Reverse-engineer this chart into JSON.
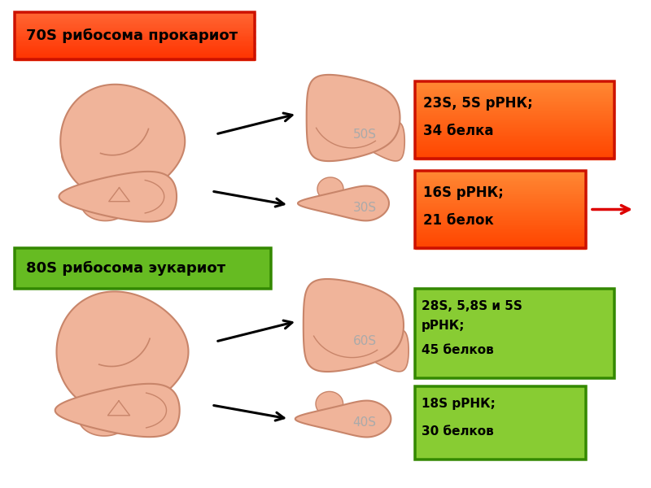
{
  "bg_color": "#ffffff",
  "ribosome_fill": "#F0B49A",
  "ribosome_edge": "#C8856A",
  "prokaryote_label": "70S рибосома прокариот",
  "prokaryote_box_face": "#FF5500",
  "prokaryote_box_edge": "#CC1100",
  "eukaryote_label": "80S рибосома эукариот",
  "eukaryote_box_face": "#66BB22",
  "eukaryote_box_edge": "#338800",
  "info_box1_text": "23S, 5S рРНК;\n\n34 белка",
  "info_box1_face": "#FF6622",
  "info_box1_edge": "#CC1100",
  "info_box2_text": "16S рРНК;\n\n21 белок",
  "info_box2_face": "#FF6622",
  "info_box2_edge": "#CC1100",
  "info_box3_text": "28S, 5,8S и 5S\nрРНК;\n\n45 белков",
  "info_box3_face": "#88CC33",
  "info_box3_edge": "#338800",
  "info_box4_text": "18S рРНК;\n\n30 белков",
  "info_box4_face": "#88CC33",
  "info_box4_edge": "#338800",
  "label_50S": "50S",
  "label_30S": "30S",
  "label_60S": "60S",
  "label_40S": "40S",
  "label_color": "#AAAAAA",
  "text_color_white": "#000000",
  "arrow_color": "#000000",
  "red_arrow_color": "#DD0000",
  "line_color": "#C8856A"
}
